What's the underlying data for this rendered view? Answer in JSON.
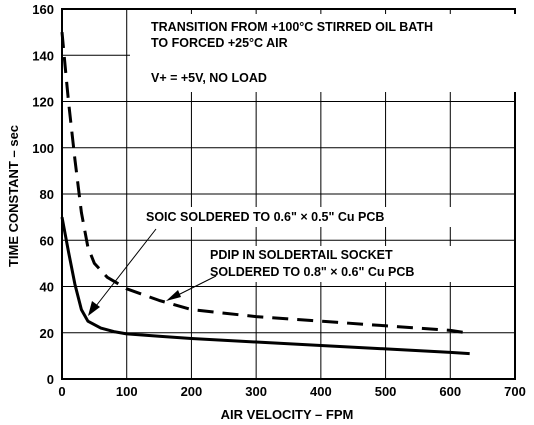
{
  "chart_data": {
    "type": "line",
    "xlabel": "AIR VELOCITY – FPM",
    "ylabel": "TIME CONSTANT – sec",
    "xlim": [
      0,
      700
    ],
    "ylim": [
      0,
      160
    ],
    "x_ticks": [
      "0",
      "100",
      "200",
      "300",
      "400",
      "500",
      "600",
      "700"
    ],
    "y_ticks": [
      "0",
      "20",
      "40",
      "60",
      "80",
      "100",
      "120",
      "140",
      "160"
    ],
    "grid": true,
    "annotations": {
      "title_line1": "TRANSITION FROM +100°C STIRRED OIL BATH",
      "title_line2": "TO FORCED +25°C AIR",
      "condition": "V+ = +5V, NO LOAD",
      "soic_label": "SOIC SOLDERED TO 0.6\" × 0.5\" Cu PCB",
      "pdip_label_line1": "PDIP IN SOLDERTAIL SOCKET",
      "pdip_label_line2": "SOLDERED TO 0.8\" × 0.6\" Cu PCB"
    },
    "series": [
      {
        "name": "SOIC SOLDERED TO 0.6\" × 0.5\" Cu PCB",
        "style": "solid",
        "color": "#000000",
        "points": [
          [
            0,
            70
          ],
          [
            10,
            55
          ],
          [
            20,
            41
          ],
          [
            30,
            30
          ],
          [
            40,
            25
          ],
          [
            60,
            22
          ],
          [
            80,
            20.5
          ],
          [
            100,
            19.5
          ],
          [
            150,
            18.5
          ],
          [
            200,
            17.5
          ],
          [
            300,
            16
          ],
          [
            400,
            14.5
          ],
          [
            500,
            13
          ],
          [
            600,
            11.5
          ],
          [
            630,
            11
          ]
        ]
      },
      {
        "name": "PDIP IN SOLDERTAIL SOCKET SOLDERED TO 0.8\" × 0.6\" Cu PCB",
        "style": "dashed",
        "color": "#000000",
        "points": [
          [
            0,
            150
          ],
          [
            5,
            135
          ],
          [
            10,
            120
          ],
          [
            20,
            95
          ],
          [
            30,
            72
          ],
          [
            40,
            57
          ],
          [
            50,
            50
          ],
          [
            70,
            44
          ],
          [
            100,
            39
          ],
          [
            150,
            34
          ],
          [
            200,
            30
          ],
          [
            300,
            27
          ],
          [
            400,
            25
          ],
          [
            500,
            23
          ],
          [
            600,
            21
          ],
          [
            625,
            20
          ]
        ]
      }
    ]
  }
}
